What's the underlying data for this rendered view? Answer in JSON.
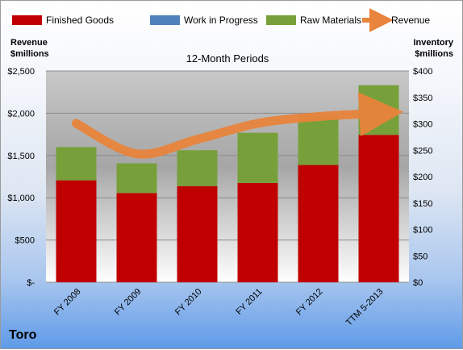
{
  "company": "Toro",
  "chart_data": {
    "type": "bar",
    "subtitle": "12-Month Periods",
    "left_axis_label": [
      "Revenue",
      "$millions"
    ],
    "right_axis_label": [
      "Inventory",
      "$millions"
    ],
    "categories": [
      "FY 2008",
      "FY 2009",
      "FY 2010",
      "FY 2011",
      "FY 2012",
      "TTM 5-2013"
    ],
    "left_ylim": [
      0,
      2500
    ],
    "right_ylim": [
      0,
      400
    ],
    "left_ticks": [
      "$-",
      "$500",
      "$1,000",
      "$1,500",
      "$2,000",
      "$2,500"
    ],
    "left_tick_values": [
      0,
      500,
      1000,
      1500,
      2000,
      2500
    ],
    "right_ticks": [
      "$0",
      "$50",
      "$100",
      "$150",
      "$200",
      "$250",
      "$300",
      "$350",
      "$400"
    ],
    "right_tick_values": [
      0,
      50,
      100,
      150,
      200,
      250,
      300,
      350,
      400
    ],
    "stacked": true,
    "series": [
      {
        "name": "Finished Goods",
        "axis": "right",
        "color": "#c00000",
        "values": [
          193,
          169,
          182,
          188,
          222,
          279
        ]
      },
      {
        "name": "Work in Progress",
        "axis": "right",
        "color": "#4f81bd",
        "values": [
          0,
          0,
          0,
          0,
          0,
          0
        ]
      },
      {
        "name": "Raw Materials",
        "axis": "right",
        "color": "#77a03a",
        "values": [
          63,
          56,
          68,
          95,
          93,
          94
        ]
      },
      {
        "name": "Revenue",
        "type": "line",
        "axis": "left",
        "color": "#e8843c",
        "values": [
          1880,
          1520,
          1690,
          1880,
          1960,
          2000
        ]
      }
    ],
    "legend_position": "top"
  }
}
